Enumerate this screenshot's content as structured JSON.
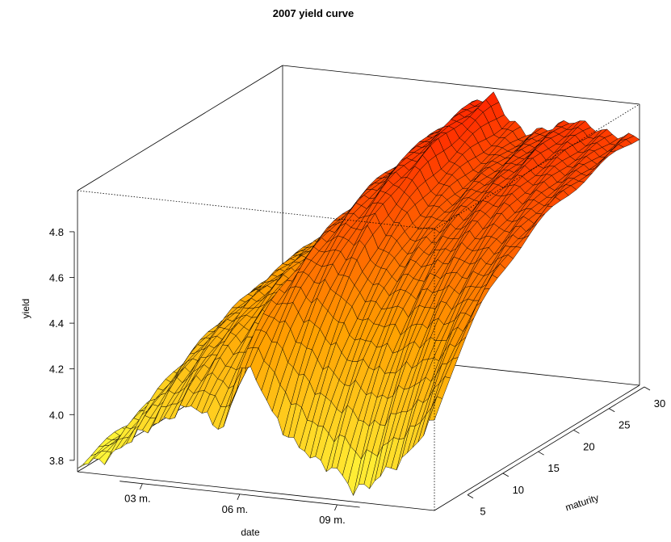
{
  "chart_data": {
    "type": "surface",
    "title": "2007 yield curve",
    "xlabel": "date",
    "ylabel": "maturity",
    "zlabel": "yield",
    "x_ticks": [
      "03 m.",
      "06 m.",
      "09 m."
    ],
    "y_ticks": [
      "5",
      "10",
      "15",
      "20",
      "25",
      "30"
    ],
    "z_ticks": [
      "3.8",
      "4.0",
      "4.2",
      "4.4",
      "4.6",
      "4.8"
    ],
    "x_range": [
      1,
      12
    ],
    "y_range": [
      1,
      30
    ],
    "z_range": [
      3.75,
      4.98
    ],
    "color_scale": [
      "#ffff40",
      "#ffa000",
      "#ff2000"
    ],
    "mesh_color": "#000000",
    "surface_profile": {
      "dates": [
        1,
        1.5,
        2,
        2.5,
        3,
        3.5,
        4,
        4.5,
        5,
        5.5,
        6,
        6.5,
        7,
        7.5,
        8,
        8.5,
        9,
        9.5,
        10,
        10.5,
        11,
        11.5,
        12
      ],
      "short_rate": [
        3.78,
        3.8,
        3.83,
        3.9,
        3.96,
        4.0,
        4.05,
        4.1,
        4.05,
        4.0,
        4.3,
        4.25,
        4.1,
        4.0,
        3.95,
        3.9,
        3.88,
        3.8,
        3.83,
        3.9,
        3.95,
        4.05,
        4.15
      ],
      "long_rate": [
        3.82,
        3.95,
        4.1,
        4.22,
        4.32,
        4.4,
        4.45,
        4.5,
        4.55,
        4.6,
        4.75,
        4.85,
        4.92,
        4.95,
        4.85,
        4.8,
        4.82,
        4.85,
        4.88,
        4.86,
        4.84,
        4.83,
        4.84
      ]
    }
  }
}
